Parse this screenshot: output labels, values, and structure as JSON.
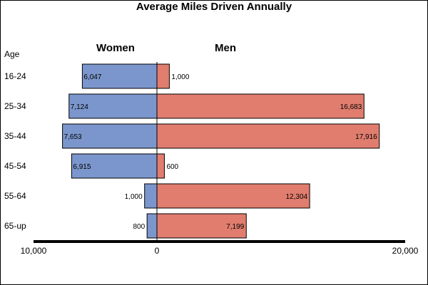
{
  "chart_data": {
    "type": "bar",
    "orientation": "horizontal",
    "title": "Average Miles Driven Annually",
    "category_axis_label": "Age",
    "categories": [
      "16-24",
      "25-34",
      "35-44",
      "45-54",
      "55-64",
      "65-up"
    ],
    "series": [
      {
        "name": "Women",
        "direction": "left",
        "color": "#7b96cc",
        "values": [
          6047,
          7124,
          7653,
          6915,
          1000,
          800
        ],
        "data_labels": [
          "6,047",
          "7,124",
          "7,653",
          "6,915",
          "1,000",
          "800"
        ]
      },
      {
        "name": "Men",
        "direction": "right",
        "color": "#e07d6e",
        "values": [
          1000,
          16683,
          17916,
          600,
          12304,
          7199
        ],
        "data_labels": [
          "1,000",
          "16,683",
          "17,916",
          "600",
          "12,304",
          "7,199"
        ]
      }
    ],
    "value_axis": {
      "left_max": 10000,
      "right_max": 20000,
      "ticks": [
        {
          "value": -10000,
          "label": "10,000"
        },
        {
          "value": 0,
          "label": "0"
        },
        {
          "value": 20000,
          "label": "20,000"
        }
      ]
    },
    "grid": false,
    "legend": "none"
  }
}
